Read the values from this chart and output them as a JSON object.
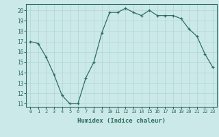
{
  "x": [
    0,
    1,
    2,
    3,
    4,
    5,
    6,
    7,
    8,
    9,
    10,
    11,
    12,
    13,
    14,
    15,
    16,
    17,
    18,
    19,
    20,
    21,
    22,
    23
  ],
  "y": [
    17.0,
    16.8,
    15.5,
    13.8,
    11.8,
    11.0,
    11.0,
    13.5,
    15.0,
    17.8,
    19.8,
    19.8,
    20.2,
    19.8,
    19.5,
    20.0,
    19.5,
    19.5,
    19.5,
    19.2,
    18.2,
    17.5,
    15.8,
    14.5
  ],
  "xlabel": "Humidex (Indice chaleur)",
  "ylim": [
    10.7,
    20.6
  ],
  "xlim": [
    -0.5,
    23.5
  ],
  "yticks": [
    11,
    12,
    13,
    14,
    15,
    16,
    17,
    18,
    19,
    20
  ],
  "xticks": [
    0,
    1,
    2,
    3,
    4,
    5,
    6,
    7,
    8,
    9,
    10,
    11,
    12,
    13,
    14,
    15,
    16,
    17,
    18,
    19,
    20,
    21,
    22,
    23
  ],
  "line_color": "#2d6e5e",
  "bg_color": "#cce9e9",
  "grid_color": "#b0d4d4",
  "tick_color": "#2d6e5e",
  "label_color": "#2d6e5e",
  "fig_width": 3.2,
  "fig_height": 2.0,
  "dpi": 100
}
